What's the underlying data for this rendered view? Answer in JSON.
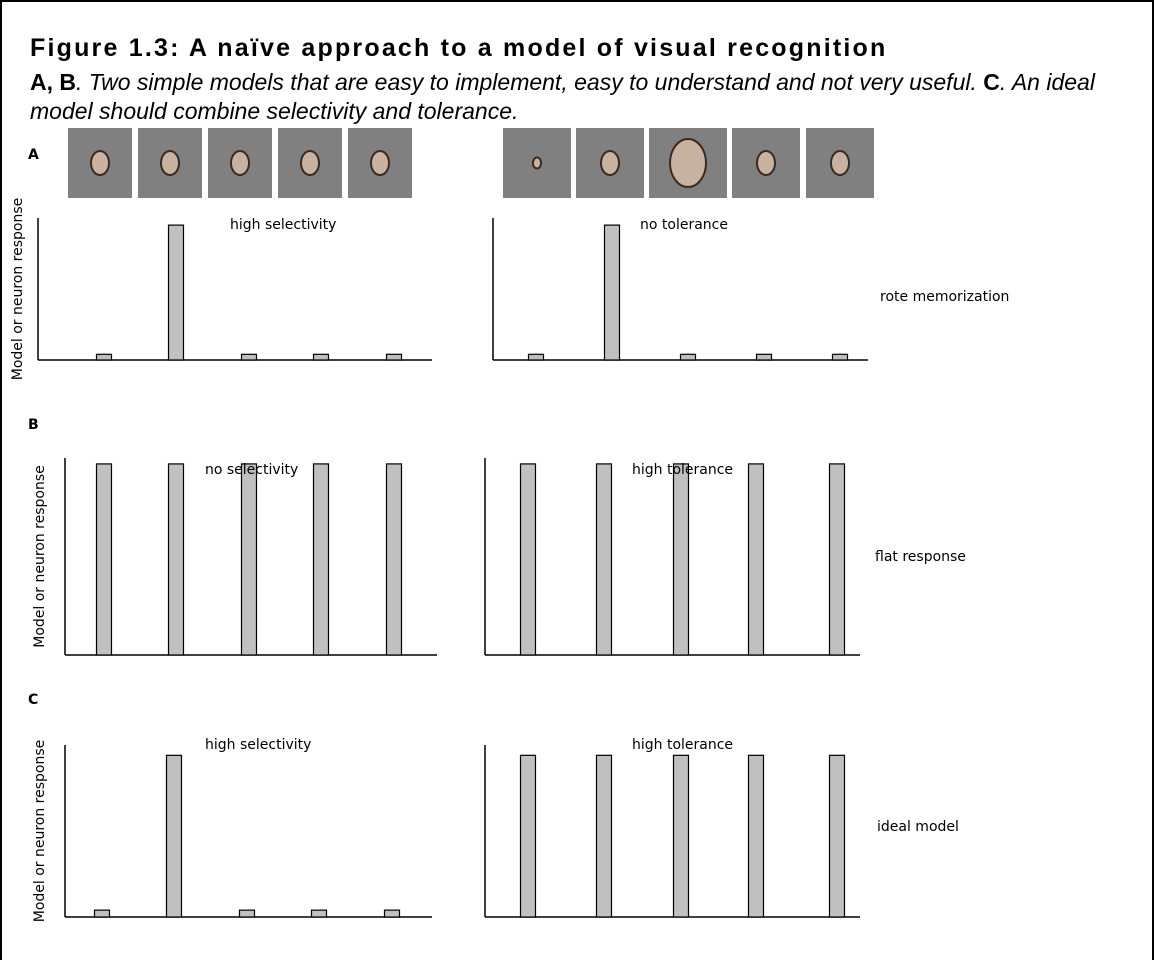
{
  "figure": {
    "title": "Figure 1.3: A naïve approach to a model of visual recognition",
    "caption": [
      {
        "text": "A, B",
        "style": "bold"
      },
      {
        "text": ". Two simple models that are easy to implement, easy to understand and not very useful. ",
        "style": "italic"
      },
      {
        "text": "C",
        "style": "bold"
      },
      {
        "text": ". An ideal model should combine selectivity and tolerance.",
        "style": "italic"
      }
    ],
    "rows": [
      {
        "label": "A",
        "side_label": "rote memorization"
      },
      {
        "label": "B",
        "side_label": "flat response"
      },
      {
        "label": "C",
        "side_label": "ideal model"
      }
    ]
  },
  "chart_data": [
    {
      "type": "bar",
      "annotation": "high selectivity",
      "y_label": "Model or neuron response",
      "values": [
        4,
        95,
        4,
        4,
        4
      ],
      "ylim": [
        0,
        100
      ],
      "color": "#c0c0c0"
    },
    {
      "type": "bar",
      "annotation": "no tolerance",
      "values": [
        4,
        95,
        4,
        4,
        4
      ],
      "ylim": [
        0,
        100
      ],
      "color": "#c0c0c0"
    },
    {
      "type": "bar",
      "annotation": "no selectivity",
      "y_label": "Model or neuron response",
      "values": [
        97,
        97,
        97,
        97,
        97
      ],
      "ylim": [
        0,
        100
      ],
      "color": "#c0c0c0"
    },
    {
      "type": "bar",
      "annotation": "high tolerance",
      "values": [
        97,
        97,
        97,
        97,
        97
      ],
      "ylim": [
        0,
        100
      ],
      "color": "#c0c0c0"
    },
    {
      "type": "bar",
      "annotation": "high selectivity",
      "y_label": "Model or neuron response",
      "values": [
        4,
        94,
        4,
        4,
        4
      ],
      "ylim": [
        0,
        100
      ],
      "color": "#c0c0c0"
    },
    {
      "type": "bar",
      "annotation": "high tolerance",
      "values": [
        94,
        94,
        94,
        94,
        94
      ],
      "ylim": [
        0,
        100
      ],
      "color": "#c0c0c0"
    }
  ]
}
